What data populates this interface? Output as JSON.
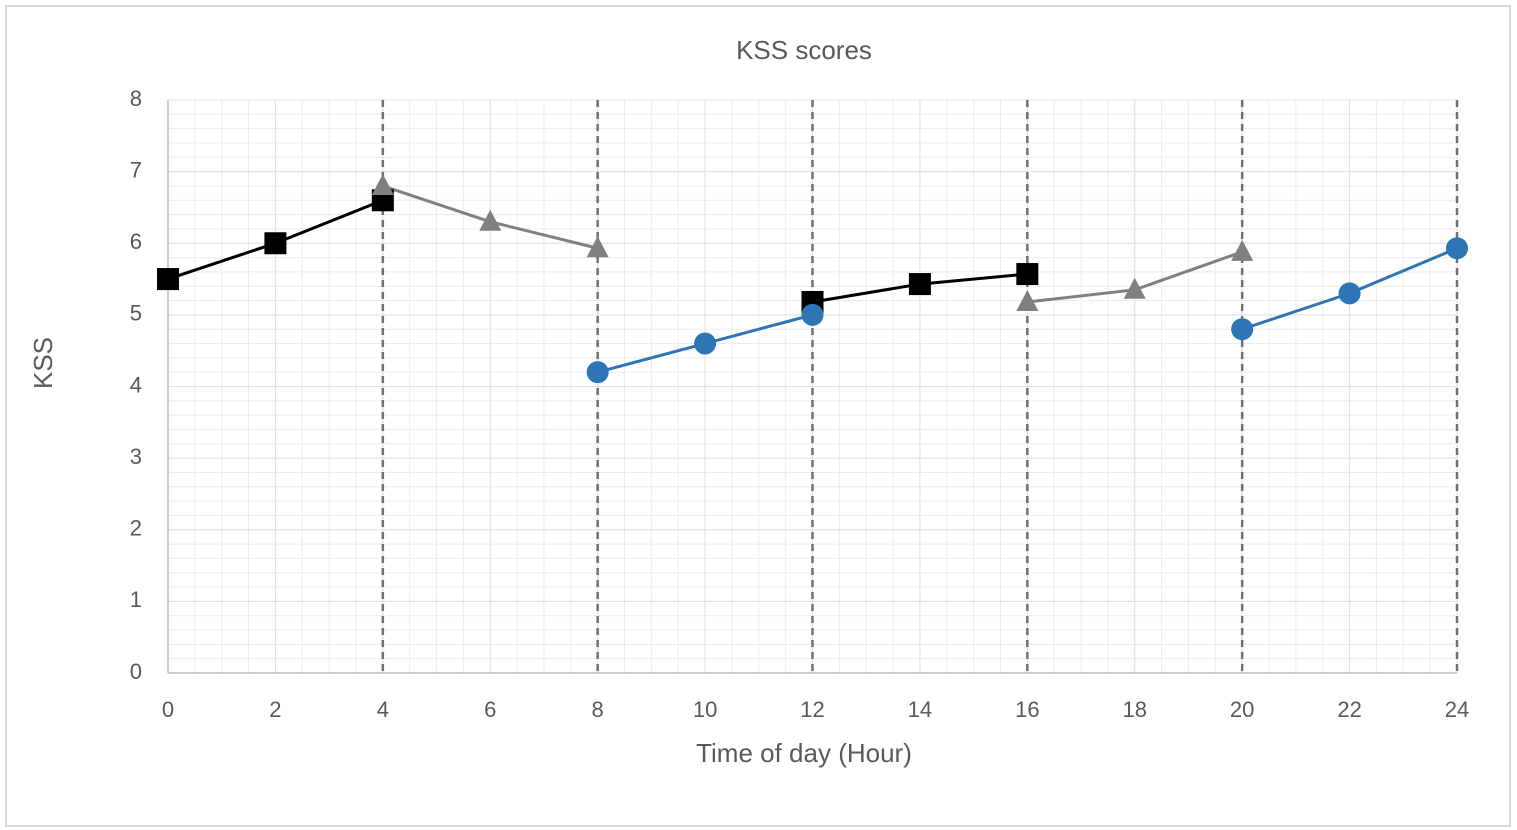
{
  "chart_data": {
    "type": "line",
    "title": "KSS scores",
    "x_label": "Time of day (Hour)",
    "y_label": "KSS",
    "x": [
      0,
      2,
      4,
      6,
      8,
      10,
      12,
      14,
      16,
      18,
      20,
      22,
      24
    ],
    "series": [
      {
        "color": "#000000",
        "marker": "square",
        "values": [
          5.5,
          6.0,
          6.6,
          null,
          null,
          null,
          5.18,
          5.43,
          5.57,
          null,
          null,
          null,
          null
        ]
      },
      {
        "color": "#808080",
        "marker": "triangle",
        "values": [
          null,
          null,
          6.8,
          6.3,
          5.93,
          null,
          null,
          null,
          5.18,
          5.35,
          5.88,
          null,
          null
        ]
      },
      {
        "color": "#2e75b6",
        "marker": "circle",
        "values": [
          null,
          null,
          null,
          null,
          4.2,
          4.6,
          5.0,
          null,
          null,
          null,
          4.8,
          5.3,
          5.93
        ]
      }
    ],
    "vlines": [
      4,
      8,
      12,
      16,
      20,
      24
    ],
    "xlim": [
      0,
      24
    ],
    "xticks": [
      0,
      2,
      4,
      6,
      8,
      10,
      12,
      14,
      16,
      18,
      20,
      22,
      24
    ],
    "ylim": [
      0,
      8
    ],
    "yticks": [
      0,
      1,
      2,
      3,
      4,
      5,
      6,
      7,
      8
    ],
    "grid": true,
    "minor_grid": true
  }
}
